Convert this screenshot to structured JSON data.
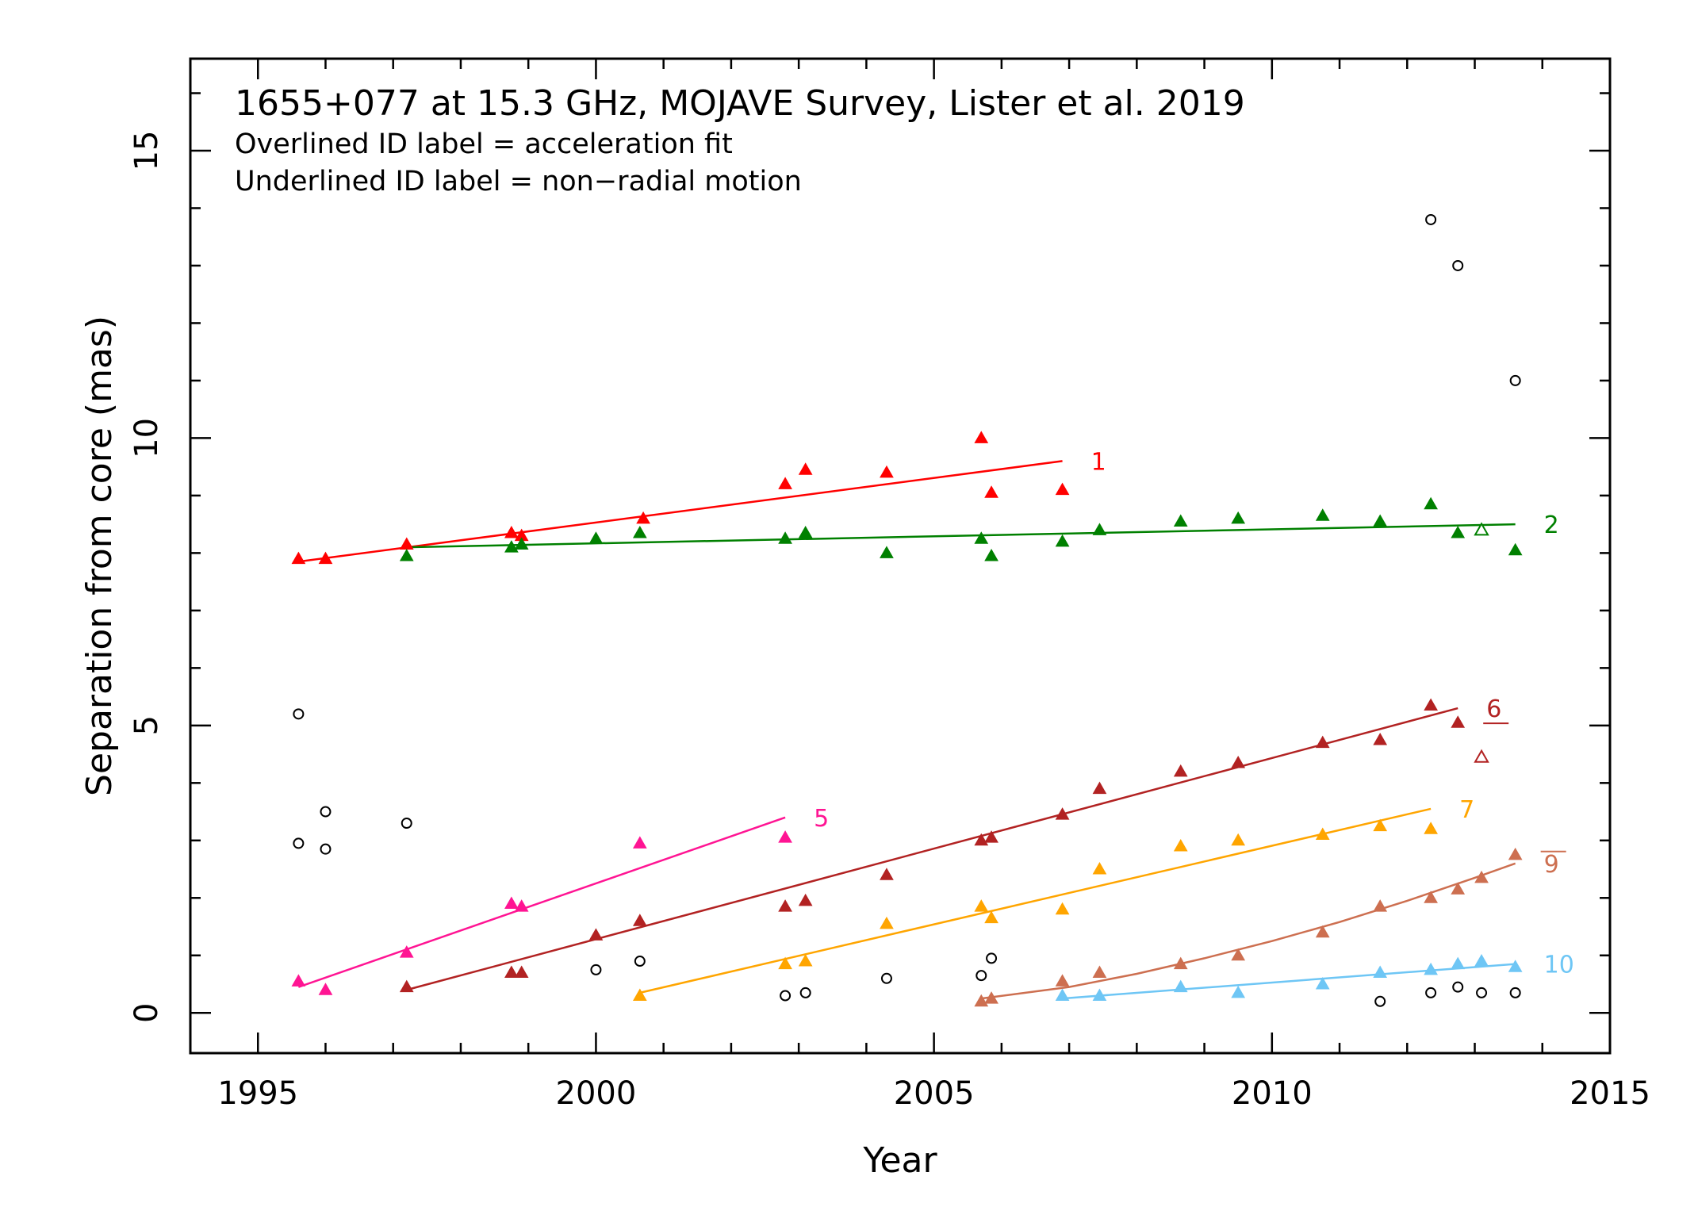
{
  "chart_data": {
    "type": "scatter",
    "title": "1655+077 at 15.3 GHz, MOJAVE Survey, Lister et al. 2019",
    "annotations": [
      "Overlined ID label = acceleration fit",
      "Underlined ID label = non−radial motion"
    ],
    "xlabel": "Year",
    "ylabel": "Separation from core (mas)",
    "xlim": [
      1994,
      2015
    ],
    "ylim": [
      -0.7,
      16.6
    ],
    "x_ticks": [
      1995,
      2000,
      2005,
      2010,
      2015
    ],
    "x_tick_labels": [
      "1995",
      "2000",
      "2005",
      "2010",
      "2015"
    ],
    "y_ticks": [
      0,
      5,
      10,
      15
    ],
    "y_tick_labels": [
      "0",
      "5",
      "10",
      "15"
    ],
    "grid": false,
    "legend": "none",
    "series": [
      {
        "name": "1",
        "color": "#ff0000",
        "label_style": "plain",
        "points": [
          [
            1995.6,
            7.9
          ],
          [
            1996.0,
            7.9
          ],
          [
            1997.2,
            8.15
          ],
          [
            1998.75,
            8.35
          ],
          [
            1998.9,
            8.3
          ],
          [
            2000.7,
            8.6
          ],
          [
            2002.8,
            9.2
          ],
          [
            2003.1,
            9.45
          ],
          [
            2004.3,
            9.4
          ],
          [
            2005.7,
            10.0
          ],
          [
            2005.85,
            9.05
          ],
          [
            2006.9,
            9.1
          ]
        ],
        "fit": [
          [
            1995.6,
            7.85
          ],
          [
            2006.9,
            9.6
          ]
        ]
      },
      {
        "name": "2",
        "color": "#008000",
        "label_style": "plain",
        "points": [
          [
            1997.2,
            7.95
          ],
          [
            1998.75,
            8.1
          ],
          [
            1998.9,
            8.15
          ],
          [
            2000.0,
            8.25
          ],
          [
            2000.65,
            8.35
          ],
          [
            2002.8,
            8.25
          ],
          [
            2003.1,
            8.35
          ],
          [
            2004.3,
            8.0
          ],
          [
            2005.7,
            8.25
          ],
          [
            2005.85,
            7.95
          ],
          [
            2006.9,
            8.2
          ],
          [
            2007.45,
            8.4
          ],
          [
            2008.65,
            8.55
          ],
          [
            2009.5,
            8.6
          ],
          [
            2010.75,
            8.65
          ],
          [
            2011.6,
            8.55
          ],
          [
            2012.35,
            8.85
          ],
          [
            2012.75,
            8.35
          ],
          [
            2013.6,
            8.05
          ]
        ],
        "open_points": [
          [
            2013.1,
            8.4
          ]
        ],
        "fit": [
          [
            1997.2,
            8.1
          ],
          [
            2013.6,
            8.5
          ]
        ]
      },
      {
        "name": "5",
        "color": "#ff1493",
        "label_style": "plain",
        "points": [
          [
            1995.6,
            0.55
          ],
          [
            1996.0,
            0.4
          ],
          [
            1997.2,
            1.05
          ],
          [
            1998.75,
            1.9
          ],
          [
            1998.9,
            1.85
          ],
          [
            2000.65,
            2.95
          ],
          [
            2002.8,
            3.05
          ]
        ],
        "fit": [
          [
            1995.6,
            0.45
          ],
          [
            2002.8,
            3.4
          ]
        ]
      },
      {
        "name": "6",
        "color": "#b22222",
        "label_style": "underlined",
        "points": [
          [
            1997.2,
            0.45
          ],
          [
            1998.75,
            0.7
          ],
          [
            1998.9,
            0.7
          ],
          [
            2000.0,
            1.35
          ],
          [
            2000.65,
            1.6
          ],
          [
            2002.8,
            1.85
          ],
          [
            2003.1,
            1.95
          ],
          [
            2004.3,
            2.4
          ],
          [
            2005.7,
            3.0
          ],
          [
            2005.85,
            3.05
          ],
          [
            2006.9,
            3.45
          ],
          [
            2007.45,
            3.9
          ],
          [
            2008.65,
            4.2
          ],
          [
            2009.5,
            4.35
          ],
          [
            2010.75,
            4.7
          ],
          [
            2011.6,
            4.75
          ],
          [
            2012.35,
            5.35
          ],
          [
            2012.75,
            5.05
          ]
        ],
        "open_points": [
          [
            2013.1,
            4.45
          ]
        ],
        "fit": [
          [
            1997.2,
            0.4
          ],
          [
            2012.75,
            5.3
          ]
        ]
      },
      {
        "name": "7",
        "color": "#ffa500",
        "label_style": "plain",
        "points": [
          [
            2000.65,
            0.3
          ],
          [
            2002.8,
            0.85
          ],
          [
            2003.1,
            0.9
          ],
          [
            2004.3,
            1.55
          ],
          [
            2005.7,
            1.85
          ],
          [
            2005.85,
            1.65
          ],
          [
            2006.9,
            1.8
          ],
          [
            2007.45,
            2.5
          ],
          [
            2008.65,
            2.9
          ],
          [
            2009.5,
            3.0
          ],
          [
            2010.75,
            3.1
          ],
          [
            2011.6,
            3.25
          ],
          [
            2012.35,
            3.2
          ]
        ],
        "fit": [
          [
            2000.65,
            0.35
          ],
          [
            2012.35,
            3.55
          ]
        ]
      },
      {
        "name": "9",
        "color": "#cd6f50",
        "label_style": "overlined",
        "points": [
          [
            2005.7,
            0.2
          ],
          [
            2005.85,
            0.25
          ],
          [
            2006.9,
            0.55
          ],
          [
            2007.45,
            0.7
          ],
          [
            2008.65,
            0.85
          ],
          [
            2009.5,
            1.0
          ],
          [
            2010.75,
            1.4
          ],
          [
            2011.6,
            1.85
          ],
          [
            2012.35,
            2.0
          ],
          [
            2012.75,
            2.15
          ],
          [
            2013.1,
            2.35
          ],
          [
            2013.6,
            2.75
          ]
        ],
        "fit_curve": [
          [
            2005.7,
            0.25
          ],
          [
            2007.0,
            0.45
          ],
          [
            2008.0,
            0.68
          ],
          [
            2009.0,
            0.95
          ],
          [
            2010.0,
            1.25
          ],
          [
            2011.0,
            1.58
          ],
          [
            2012.0,
            1.95
          ],
          [
            2013.0,
            2.35
          ],
          [
            2013.6,
            2.6
          ]
        ]
      },
      {
        "name": "10",
        "color": "#6ec6f5",
        "label_style": "plain",
        "points": [
          [
            2006.9,
            0.3
          ],
          [
            2007.45,
            0.3
          ],
          [
            2008.65,
            0.45
          ],
          [
            2009.5,
            0.35
          ],
          [
            2010.75,
            0.5
          ],
          [
            2011.6,
            0.7
          ],
          [
            2012.35,
            0.75
          ],
          [
            2012.75,
            0.85
          ],
          [
            2013.1,
            0.9
          ],
          [
            2013.6,
            0.8
          ]
        ],
        "fit": [
          [
            2006.9,
            0.25
          ],
          [
            2013.6,
            0.85
          ]
        ]
      },
      {
        "name": "",
        "color": "#000000",
        "marker": "open-circle",
        "points": [
          [
            1995.6,
            5.2
          ],
          [
            1995.6,
            2.95
          ],
          [
            1996.0,
            3.5
          ],
          [
            1996.0,
            2.85
          ],
          [
            1997.2,
            3.3
          ],
          [
            2000.0,
            0.75
          ],
          [
            2000.65,
            0.9
          ],
          [
            2002.8,
            0.3
          ],
          [
            2003.1,
            0.35
          ],
          [
            2004.3,
            0.6
          ],
          [
            2005.7,
            0.65
          ],
          [
            2005.85,
            0.95
          ],
          [
            2011.6,
            0.2
          ],
          [
            2012.35,
            13.8
          ],
          [
            2012.35,
            0.35
          ],
          [
            2012.75,
            13.0
          ],
          [
            2012.75,
            0.45
          ],
          [
            2013.1,
            0.35
          ],
          [
            2013.6,
            11.0
          ],
          [
            2013.6,
            0.35
          ]
        ]
      }
    ]
  }
}
